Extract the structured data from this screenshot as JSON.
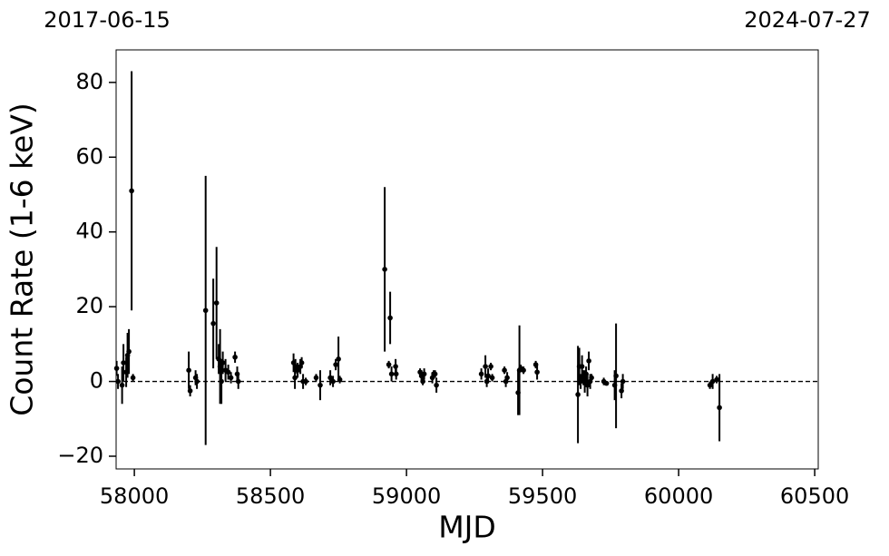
{
  "chart_data": {
    "type": "errorbar",
    "xlabel": "MJD",
    "ylabel": "Count Rate (1-6 keV)",
    "annotations": [
      "2017-06-15",
      "2024-07-27"
    ],
    "x": [
      57935,
      57940,
      57955,
      57960,
      57970,
      57975,
      57980,
      57990,
      57995,
      58200,
      58205,
      58225,
      58230,
      58262,
      58290,
      58302,
      58310,
      58315,
      58320,
      58325,
      58335,
      58345,
      58355,
      58370,
      58378,
      58382,
      58585,
      58590,
      58592,
      58600,
      58610,
      58615,
      58620,
      58630,
      58668,
      58683,
      58720,
      58730,
      58740,
      58750,
      58755,
      58920,
      58935,
      58940,
      58945,
      58960,
      58962,
      59050,
      59055,
      59060,
      59065,
      59095,
      59100,
      59105,
      59110,
      59275,
      59290,
      59295,
      59300,
      59310,
      59315,
      59360,
      59365,
      59370,
      59410,
      59415,
      59420,
      59430,
      59475,
      59480,
      59630,
      59635,
      59640,
      59645,
      59650,
      59655,
      59660,
      59665,
      59670,
      59675,
      59680,
      59725,
      59735,
      59765,
      59770,
      59790,
      59795,
      60115,
      60125,
      60140,
      60150
    ],
    "values": [
      3.5,
      0,
      -1,
      5,
      2.5,
      7,
      8,
      51,
      1,
      3,
      -2.5,
      1,
      0,
      19,
      15.5,
      21,
      6,
      4,
      0,
      5,
      3,
      2.5,
      1,
      6.5,
      2,
      0,
      5,
      1,
      4,
      3,
      4,
      5,
      0,
      0,
      1,
      -1,
      1,
      0,
      4.5,
      6,
      0.5,
      30,
      4.5,
      17,
      2,
      4,
      2,
      2.5,
      1.5,
      0,
      2,
      1,
      2,
      2,
      -1,
      2,
      4,
      0,
      1.5,
      4,
      1,
      3,
      0,
      1,
      -3,
      3,
      3.5,
      3,
      4.5,
      2.5,
      -3.5,
      4,
      0,
      4,
      1,
      0,
      2,
      -1,
      5.5,
      0,
      1,
      0,
      -0.5,
      -1,
      1.5,
      -2.5,
      0,
      -1,
      0,
      0.5,
      -7
    ],
    "errors": [
      2,
      2,
      5,
      5,
      4,
      6,
      6,
      32,
      1,
      5,
      1.5,
      2,
      2,
      36,
      12,
      15,
      4,
      10,
      6,
      3,
      3,
      2,
      1.5,
      1.5,
      2,
      2,
      2.5,
      3,
      2,
      2,
      2,
      1.5,
      2,
      1,
      1,
      4,
      2,
      1.5,
      1.5,
      6,
      1,
      22,
      1,
      7,
      2,
      2,
      1.5,
      1,
      1.5,
      1,
      1.5,
      1.5,
      1,
      1,
      2,
      1.5,
      3,
      1.5,
      2,
      1,
      1,
      1,
      1.5,
      1.5,
      6,
      12,
      1,
      1,
      1,
      2,
      13,
      5,
      2,
      3,
      2,
      3,
      2,
      3,
      2.5,
      2,
      1,
      1,
      0.5,
      4,
      14,
      2,
      2,
      1,
      2,
      1,
      9
    ],
    "color": "#000000",
    "xlim": [
      57933,
      60513
    ],
    "ylim": [
      -23.4,
      88.7
    ],
    "xticks": [
      58000,
      58500,
      59000,
      59500,
      60000,
      60500
    ],
    "yticks": [
      {
        "value": -20,
        "label": "−20"
      },
      0,
      20,
      40,
      60,
      80
    ],
    "hline": 0
  }
}
